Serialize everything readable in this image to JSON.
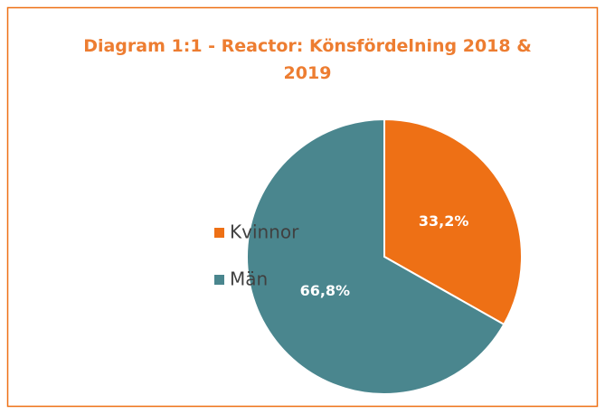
{
  "chart_data": {
    "type": "pie",
    "title": "Diagram 1:1 - Reactor: Könsfördelning 2018 & 2019",
    "categories": [
      "Kvinnor",
      "Män"
    ],
    "values": [
      33.2,
      66.8
    ],
    "value_labels": [
      "33,2%",
      "66,8%"
    ],
    "colors": [
      "#EE7015",
      "#4A868E"
    ],
    "legend": "left"
  }
}
